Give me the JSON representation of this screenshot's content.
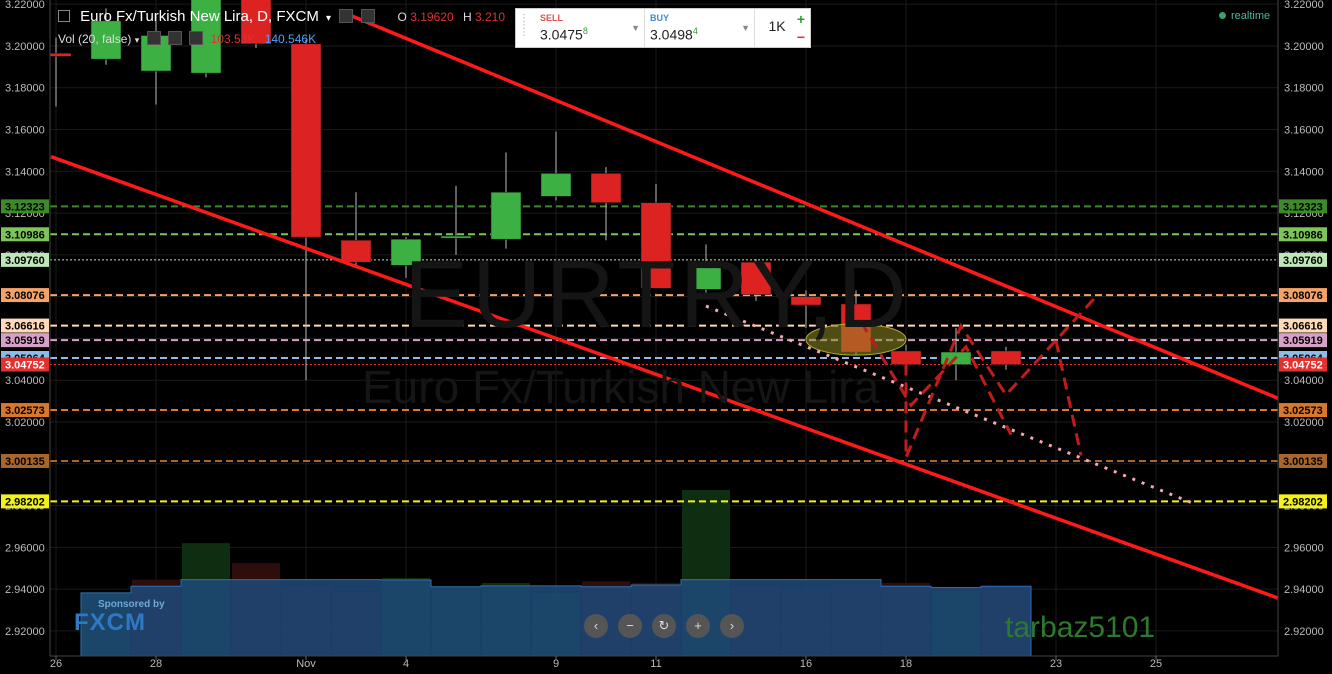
{
  "header": {
    "symbol_title": "Euro Fx/Turkish New Lira, D, FXCM",
    "o_label": "O",
    "o_value": "3.19620",
    "h_label": "H",
    "h_value": "3.210"
  },
  "volume_indicator": {
    "label": "Vol (20, false)",
    "value1": "103.53K",
    "value2": "140.546K"
  },
  "trade_panel": {
    "sell_label": "SELL",
    "sell_price_main": "3.0475",
    "sell_price_pip": "8",
    "buy_label": "BUY",
    "buy_price_main": "3.0498",
    "buy_price_pip": "4",
    "quantity": "1K",
    "plus": "+",
    "minus": "−"
  },
  "realtime_label": "realtime",
  "watermark": {
    "big": "EURTRY,D",
    "small": "Euro Fx/Turkish New Lira"
  },
  "sponsor": {
    "text": "Sponsored by",
    "brand": "FXCM"
  },
  "nav_buttons": [
    "‹",
    "−",
    "↻",
    "+",
    "›"
  ],
  "username": "tarbaz5101",
  "colors": {
    "background": "#000000",
    "bull": "#3cb043",
    "bear": "#dd2222",
    "channel": "#ff1a1a",
    "volume_fill": "#1e4a7a"
  },
  "chart_data": {
    "type": "candlestick",
    "ylim": [
      2.908,
      3.222
    ],
    "y_ticks": [
      "3.22000",
      "3.20000",
      "3.18000",
      "3.16000",
      "3.14000",
      "3.12000",
      "3.10000",
      "3.08000",
      "3.06000",
      "3.04000",
      "3.02000",
      "3.00000",
      "2.98000",
      "2.96000",
      "2.94000",
      "2.92000"
    ],
    "x_ticks": [
      {
        "label": "26",
        "i": -1
      },
      {
        "label": "28",
        "i": 1
      },
      {
        "label": "Nov",
        "i": 4
      },
      {
        "label": "4",
        "i": 6
      },
      {
        "label": "9",
        "i": 9
      },
      {
        "label": "11",
        "i": 11
      },
      {
        "label": "16",
        "i": 14
      },
      {
        "label": "18",
        "i": 16
      },
      {
        "label": "23",
        "i": 19
      },
      {
        "label": "25",
        "i": 21
      }
    ],
    "candles": [
      {
        "i": -1,
        "o": 3.1965,
        "h": 3.204,
        "l": 3.171,
        "c": 3.195
      },
      {
        "i": 0,
        "o": 3.1937,
        "h": 3.218,
        "l": 3.191,
        "c": 3.212
      },
      {
        "i": 1,
        "o": 3.188,
        "h": 3.215,
        "l": 3.172,
        "c": 3.205
      },
      {
        "i": 2,
        "o": 3.187,
        "h": 3.23,
        "l": 3.185,
        "c": 3.225
      },
      {
        "i": 3,
        "o": 3.225,
        "h": 3.23,
        "l": 3.199,
        "c": 3.201
      },
      {
        "i": 4,
        "o": 3.201,
        "h": 3.203,
        "l": 3.04,
        "c": 3.1085
      },
      {
        "i": 5,
        "o": 3.107,
        "h": 3.13,
        "l": 3.094,
        "c": 3.0965
      },
      {
        "i": 6,
        "o": 3.095,
        "h": 3.1085,
        "l": 3.089,
        "c": 3.1075
      },
      {
        "i": 7,
        "o": 3.108,
        "h": 3.133,
        "l": 3.1,
        "c": 3.109
      },
      {
        "i": 8,
        "o": 3.1075,
        "h": 3.149,
        "l": 3.103,
        "c": 3.13
      },
      {
        "i": 9,
        "o": 3.128,
        "h": 3.159,
        "l": 3.126,
        "c": 3.139
      },
      {
        "i": 10,
        "o": 3.139,
        "h": 3.142,
        "l": 3.107,
        "c": 3.125
      },
      {
        "i": 11,
        "o": 3.125,
        "h": 3.134,
        "l": 3.084,
        "c": 3.084
      },
      {
        "i": 12,
        "o": 3.0835,
        "h": 3.105,
        "l": 3.079,
        "c": 3.096
      },
      {
        "i": 13,
        "o": 3.0965,
        "h": 3.098,
        "l": 3.078,
        "c": 3.081
      },
      {
        "i": 14,
        "o": 3.08,
        "h": 3.083,
        "l": 3.065,
        "c": 3.076
      },
      {
        "i": 15,
        "o": 3.0765,
        "h": 3.083,
        "l": 3.052,
        "c": 3.0535
      },
      {
        "i": 16,
        "o": 3.054,
        "h": 3.057,
        "l": 3.046,
        "c": 3.0475
      },
      {
        "i": 17,
        "o": 3.0475,
        "h": 3.065,
        "l": 3.04,
        "c": 3.0535
      },
      {
        "i": 18,
        "o": 3.054,
        "h": 3.056,
        "l": 3.045,
        "c": 3.0475
      }
    ],
    "volumes": [
      {
        "i": 0,
        "v": 38,
        "bull": true
      },
      {
        "i": 1,
        "v": 46,
        "bull": false
      },
      {
        "i": 2,
        "v": 68,
        "bull": true
      },
      {
        "i": 3,
        "v": 56,
        "bull": false
      },
      {
        "i": 4,
        "v": 42,
        "bull": false
      },
      {
        "i": 5,
        "v": 38,
        "bull": false
      },
      {
        "i": 6,
        "v": 47,
        "bull": true
      },
      {
        "i": 7,
        "v": 40,
        "bull": true
      },
      {
        "i": 8,
        "v": 44,
        "bull": true
      },
      {
        "i": 9,
        "v": 38,
        "bull": true
      },
      {
        "i": 10,
        "v": 45,
        "bull": false
      },
      {
        "i": 11,
        "v": 44,
        "bull": false
      },
      {
        "i": 12,
        "v": 100,
        "bull": true
      },
      {
        "i": 13,
        "v": 42,
        "bull": false
      },
      {
        "i": 14,
        "v": 39,
        "bull": false
      },
      {
        "i": 15,
        "v": 43,
        "bull": false
      },
      {
        "i": 16,
        "v": 44,
        "bull": false
      },
      {
        "i": 17,
        "v": 39,
        "bull": true
      },
      {
        "i": 18,
        "v": 42,
        "bull": false
      }
    ],
    "horizontal_levels": [
      {
        "label": "3.12323",
        "value": 3.12323,
        "color": "#3c8a2a",
        "tag_text": "#000",
        "style": "dash"
      },
      {
        "label": "3.10986",
        "value": 3.10986,
        "color": "#7dc45a",
        "tag_text": "#000",
        "style": "dash"
      },
      {
        "label": "3.09760",
        "value": 3.0976,
        "color": "#bfe6b8",
        "tag_text": "#000",
        "style": "dot"
      },
      {
        "label": "3.08076",
        "value": 3.08076,
        "color": "#f4a266",
        "tag_text": "#000",
        "style": "dash"
      },
      {
        "label": "3.06616",
        "value": 3.06616,
        "color": "#ffd9b8",
        "tag_text": "#000",
        "style": "dash"
      },
      {
        "label": "3.05919",
        "value": 3.05919,
        "color": "#d7a0c8",
        "tag_text": "#000",
        "style": "dash"
      },
      {
        "label": "3.05064",
        "value": 3.05064,
        "color": "#8fbce6",
        "tag_text": "#000",
        "style": "dash"
      },
      {
        "label": "3.04752",
        "value": 3.04752,
        "color": "#e53030",
        "tag_text": "#fff",
        "style": "dot"
      },
      {
        "label": "3.02573",
        "value": 3.02573,
        "color": "#d9772b",
        "tag_text": "#000",
        "style": "dash"
      },
      {
        "label": "3.00135",
        "value": 3.00135,
        "color": "#a8662a",
        "tag_text": "#000",
        "style": "dash"
      },
      {
        "label": "2.98202",
        "value": 2.98202,
        "color": "#f2f21a",
        "tag_text": "#000",
        "style": "dash"
      }
    ],
    "trend_lines": [
      {
        "i1": 4.9,
        "y1": 3.2145,
        "i2": 25.5,
        "y2": 3.011
      },
      {
        "i1": -1.1,
        "y1": 3.147,
        "i2": 25.5,
        "y2": 2.918
      },
      {
        "i1": 12.0,
        "y1": 3.0755,
        "i2": 21.8,
        "y2": 2.9805,
        "style": "pink-dot"
      }
    ],
    "projection_path": [
      {
        "i": 16.0,
        "y": 3.048
      },
      {
        "i": 16.0,
        "y": 3.003
      },
      {
        "i": 17.1,
        "y": 3.066
      },
      {
        "i": 18.0,
        "y": 3.033
      },
      {
        "i": 19.8,
        "y": 3.08
      }
    ],
    "projection_path_2": [
      {
        "i": 15.1,
        "y": 3.068
      },
      {
        "i": 16.1,
        "y": 3.028
      },
      {
        "i": 17.2,
        "y": 3.056
      },
      {
        "i": 18.1,
        "y": 3.014
      }
    ],
    "projection_path_3": [
      {
        "i": 19.0,
        "y": 3.059
      },
      {
        "i": 19.5,
        "y": 3.004
      }
    ],
    "ellipse": {
      "i": 15.0,
      "y": 3.0595,
      "rx_bars": 1.0,
      "ry_price": 0.0075
    }
  }
}
